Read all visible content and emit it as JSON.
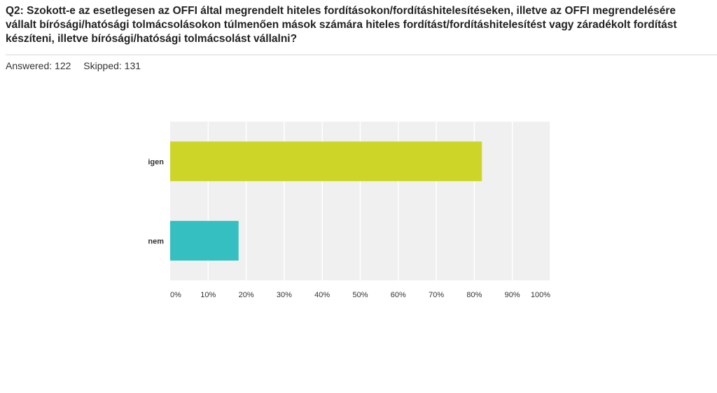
{
  "question": {
    "title": "Q2: Szokott-e az esetlegesen az OFFI által megrendelt hiteles fordításokon/fordításhitelesítéseken, illetve az OFFI megrendelésére vállalt bírósági/hatósági tolmácsolásokon túlmenően mások számára hiteles fordítást/fordításhitelesítést vagy záradékolt fordítást készíteni, illetve bírósági/hatósági tolmácsolást vállalni?"
  },
  "stats": {
    "answered": "Answered: 122",
    "skipped": "Skipped: 131"
  },
  "chart_data": {
    "type": "bar",
    "orientation": "horizontal",
    "categories": [
      "igen",
      "nem"
    ],
    "values": [
      82,
      18
    ],
    "colors": [
      "#cdd628",
      "#36bfc1"
    ],
    "xlim": [
      0,
      100
    ],
    "x_ticks": [
      "0%",
      "10%",
      "20%",
      "30%",
      "40%",
      "50%",
      "60%",
      "70%",
      "80%",
      "90%",
      "100%"
    ],
    "grid": true,
    "plot_background": "#f0f0f0"
  }
}
